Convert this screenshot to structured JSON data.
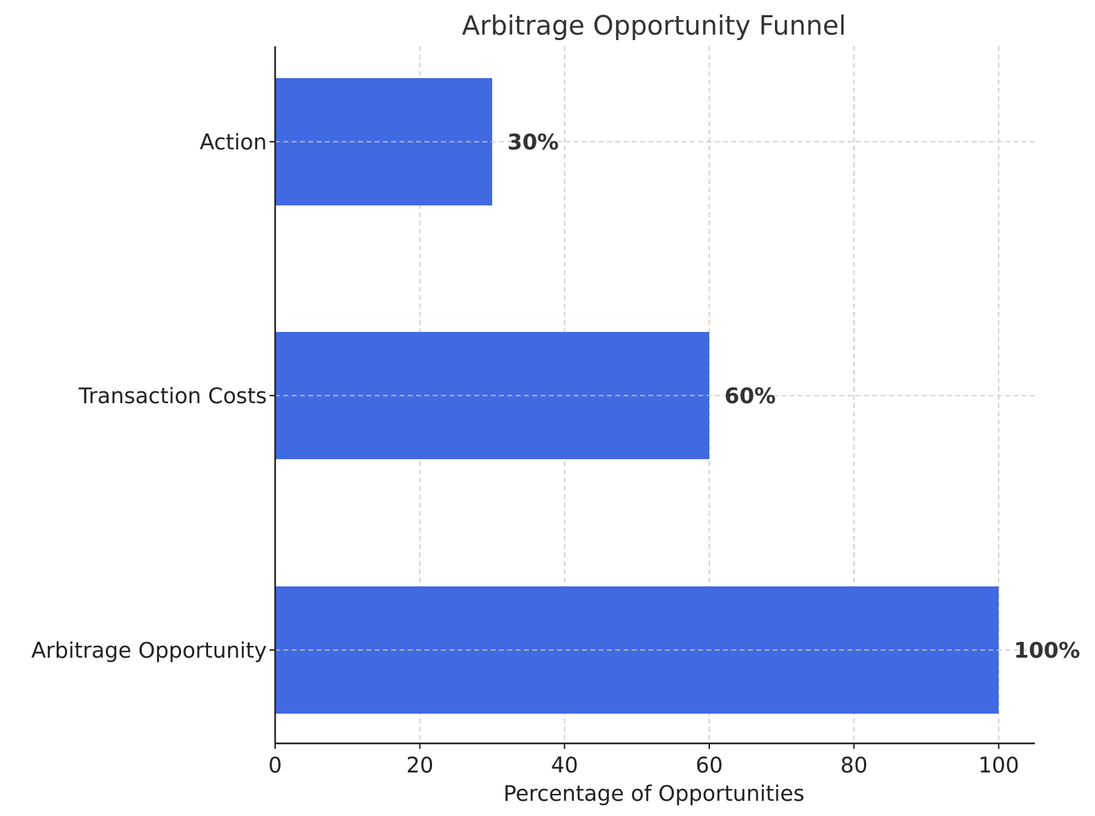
{
  "chart_data": {
    "type": "bar",
    "orientation": "horizontal",
    "title": "Arbitrage Opportunity Funnel",
    "xlabel": "Percentage of Opportunities",
    "ylabel": "",
    "categories": [
      "Arbitrage Opportunity",
      "Transaction Costs",
      "Action"
    ],
    "values": [
      100,
      60,
      30
    ],
    "data_labels": [
      "100%",
      "60%",
      "30%"
    ],
    "xlim": [
      0,
      105
    ],
    "xticks": [
      0,
      20,
      40,
      60,
      80,
      100
    ],
    "grid": true,
    "bar_color": "#4169E1"
  }
}
